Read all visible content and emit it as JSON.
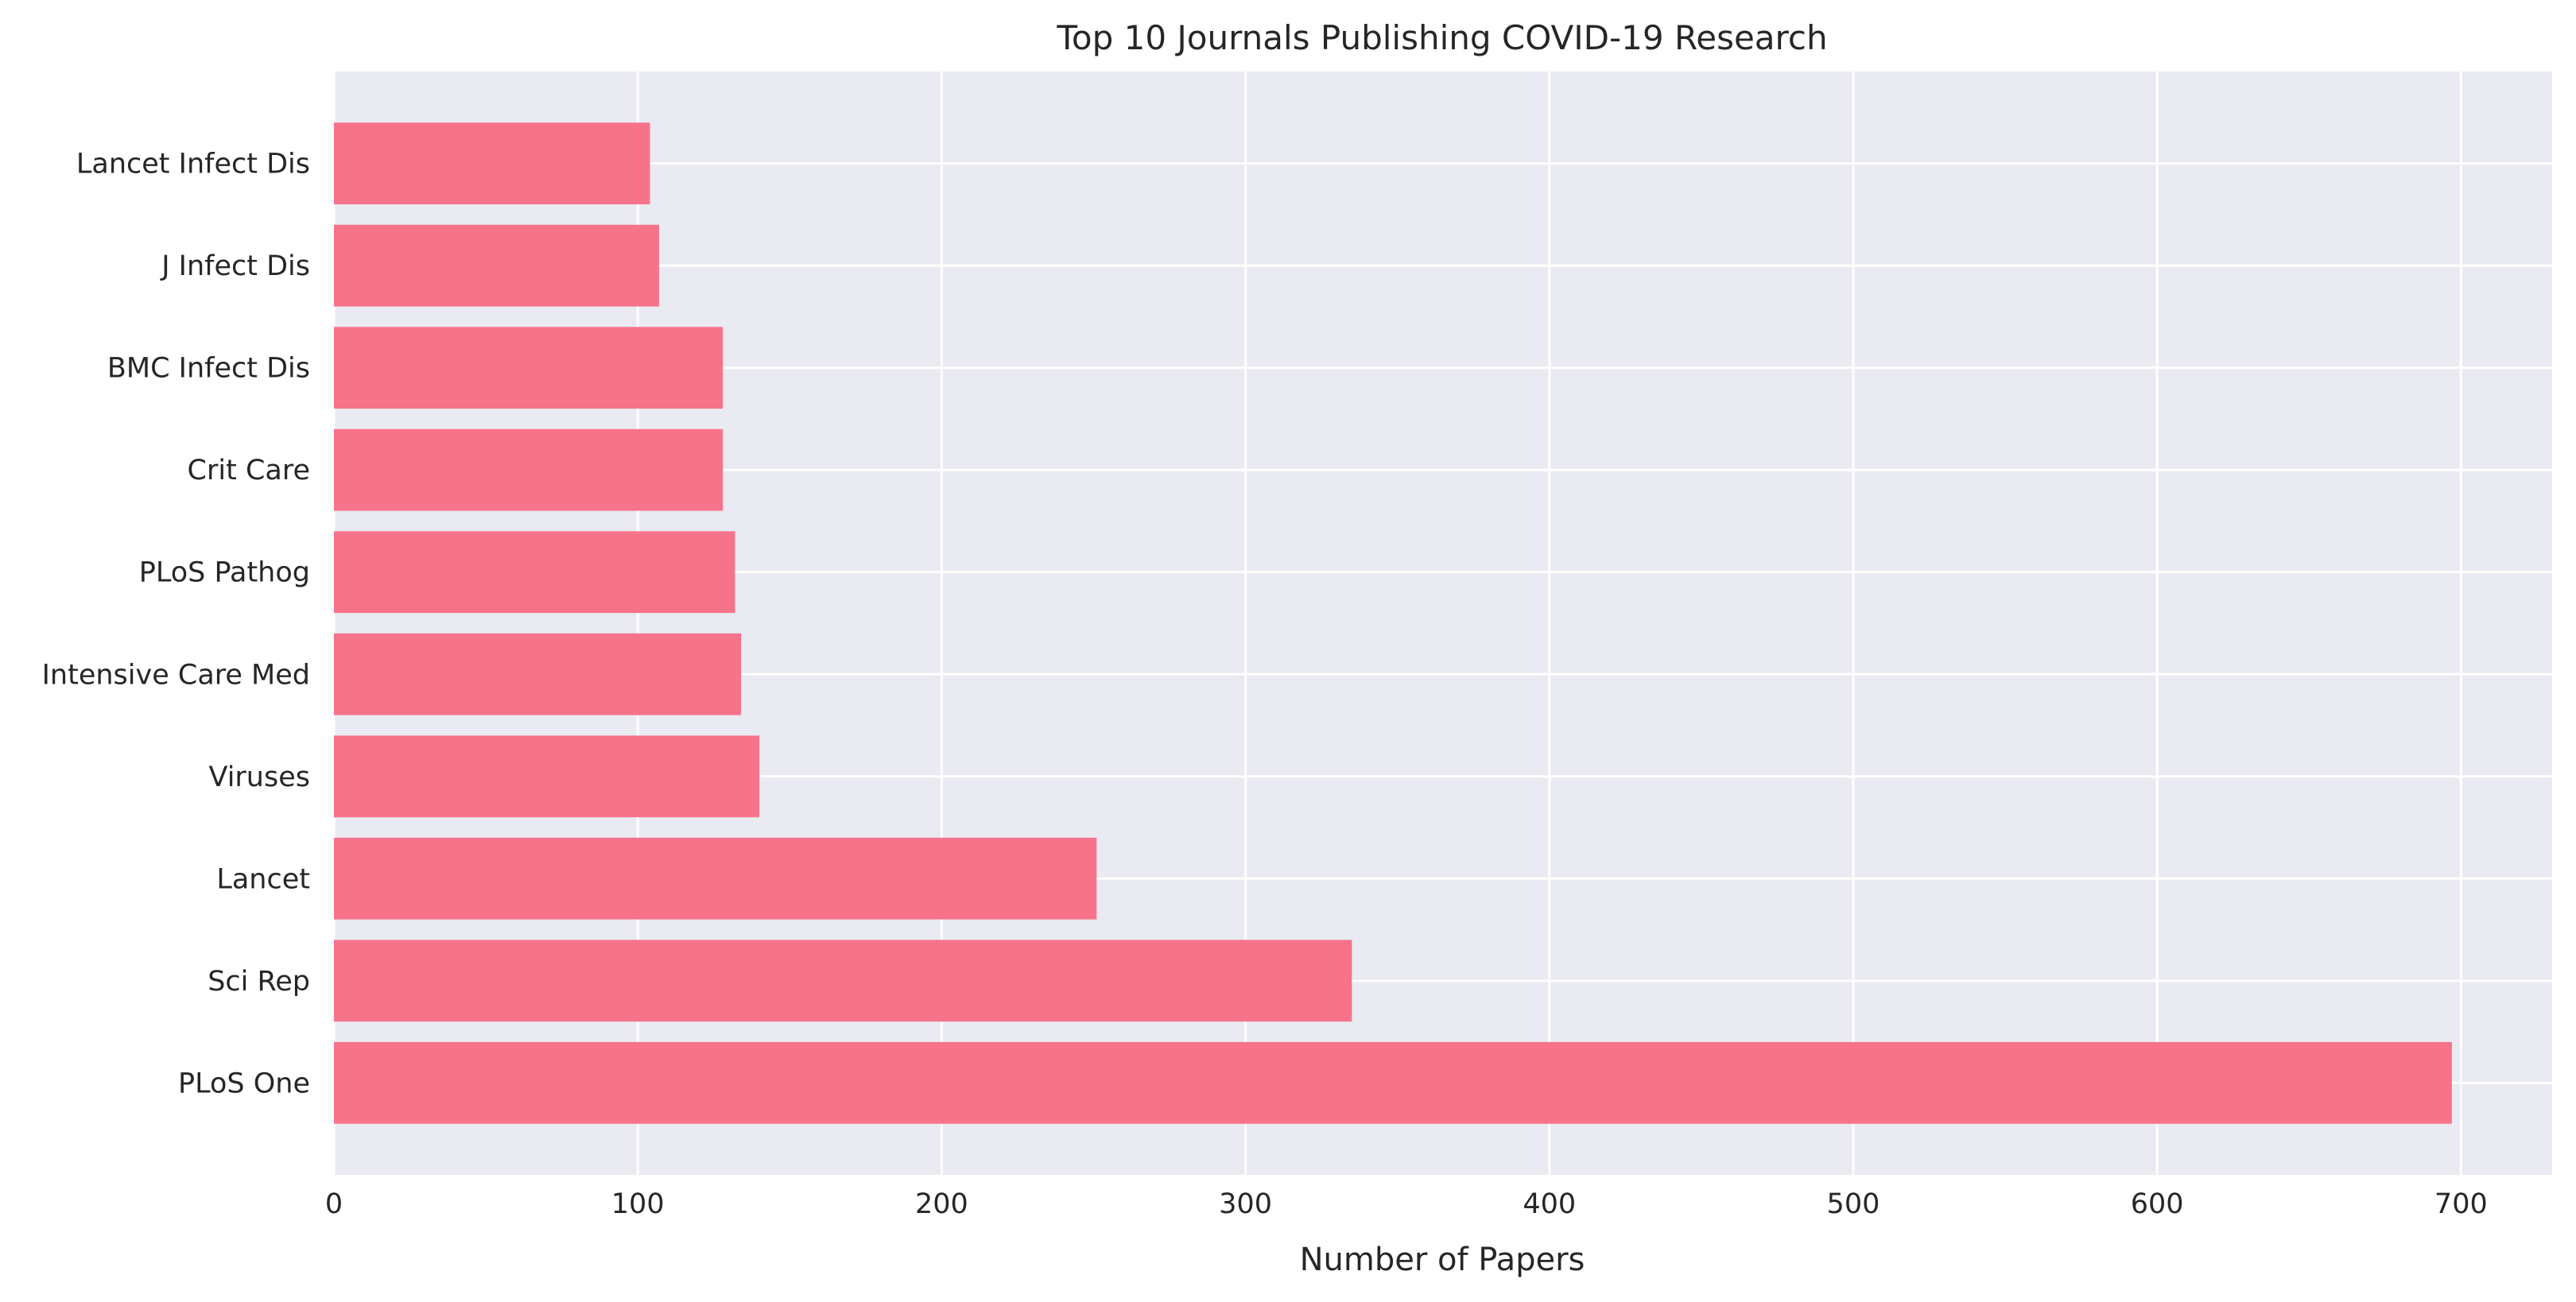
{
  "chart_data": {
    "type": "bar",
    "orientation": "horizontal",
    "title": "Top 10 Journals Publishing COVID-19 Research",
    "xlabel": "Number of Papers",
    "ylabel": "",
    "categories": [
      "PLoS One",
      "Sci Rep",
      "Lancet",
      "Viruses",
      "Intensive Care Med",
      "PLoS Pathog",
      "Crit Care",
      "BMC Infect Dis",
      "J Infect Dis",
      "Lancet Infect Dis"
    ],
    "values": [
      697,
      335,
      251,
      140,
      134,
      132,
      128,
      128,
      107,
      104
    ],
    "xlim": [
      0,
      730
    ],
    "xticks": [
      0,
      100,
      200,
      300,
      400,
      500,
      600,
      700
    ],
    "xtick_labels": [
      "0",
      "100",
      "200",
      "300",
      "400",
      "500",
      "600",
      "700"
    ],
    "grid": true,
    "bar_color": "#f7738a",
    "background_color": "#eaeaf2",
    "grid_color": "#ffffff"
  }
}
